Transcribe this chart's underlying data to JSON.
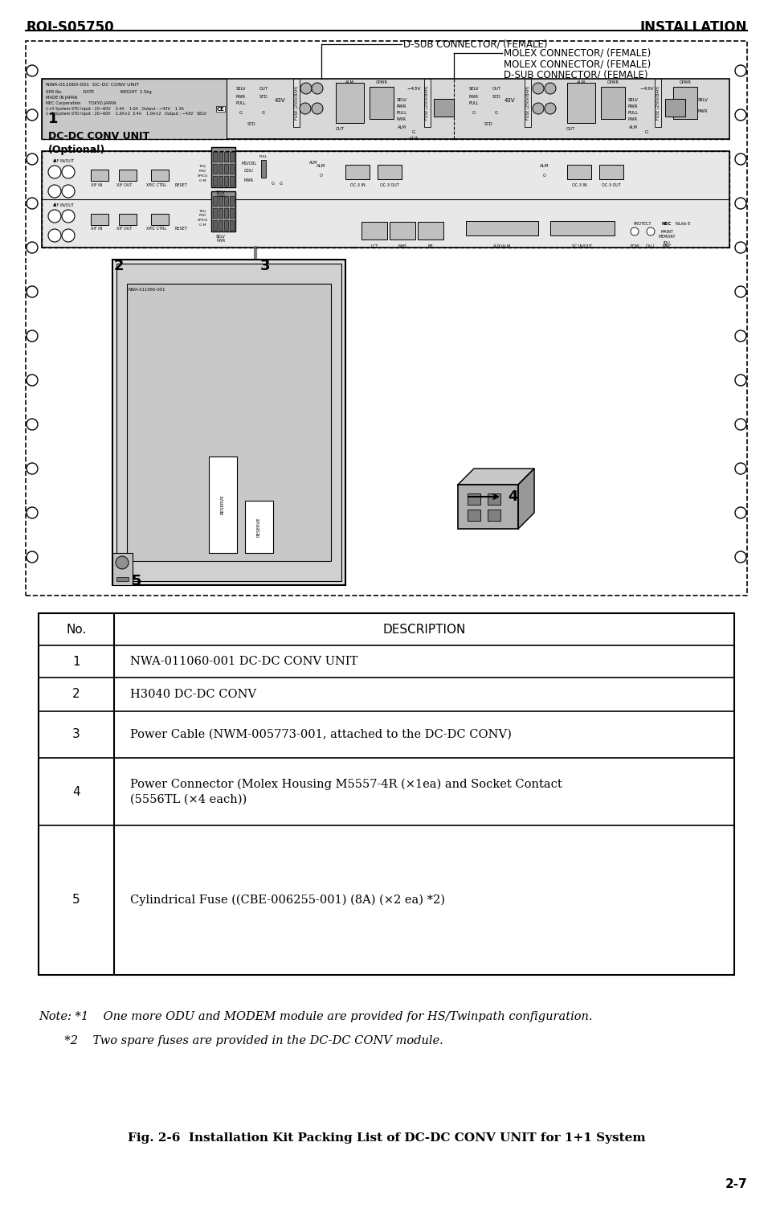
{
  "header_left": "ROI-S05750",
  "header_right": "INSTALLATION",
  "page_num": "2-7",
  "fig_caption": "Fig. 2-6  Installation Kit Packing List of DC-DC CONV UNIT for 1+1 System",
  "note1": "Note: *1    One more ODU and MODEM module are provided for HS/Twinpath configuration.",
  "note2": "       *2    Two spare fuses are provided in the DC-DC CONV module.",
  "table_headers": [
    "No.",
    "DESCRIPTION"
  ],
  "table_rows": [
    [
      "1",
      "NWA-011060-001 DC-DC CONV UNIT"
    ],
    [
      "2",
      "H3040 DC-DC CONV"
    ],
    [
      "3",
      "Power Cable (NWM-005773-001, attached to the DC-DC CONV)"
    ],
    [
      "4",
      "Power Connector (Molex Housing M5557-4R (×1ea) and Socket Contact\n(5556TL (×4 each))"
    ],
    [
      "5",
      "Cylindrical Fuse ((CBE-006255-001) (8A) (×2 ea) *2)"
    ]
  ],
  "connector_labels": [
    "D-SUB CONNECTOR/ (FEMALE)",
    "MOLEX CONNECTOR/ (FEMALE)",
    "MOLEX CONNECTOR/ (FEMALE)",
    "D-SUB CONNECTOR/ (FEMALE)"
  ],
  "bg_color": "#ffffff"
}
